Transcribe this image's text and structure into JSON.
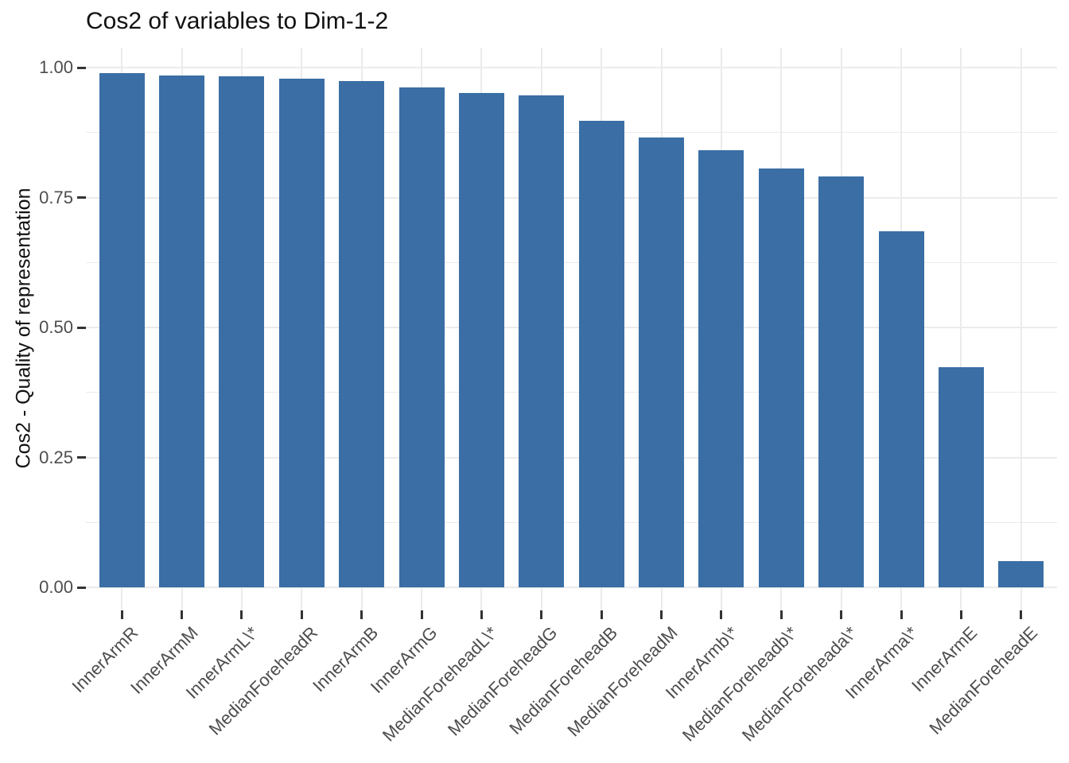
{
  "chart_data": {
    "type": "bar",
    "title": "Cos2 of variables to Dim-1-2",
    "xlabel": "",
    "ylabel": "Cos2 - Quality of representation",
    "categories": [
      "InnerArmR",
      "InnerArmM",
      "InnerArmL\\*",
      "MedianForeheadR",
      "InnerArmB",
      "InnerArmG",
      "MedianForeheadL\\*",
      "MedianForeheadG",
      "MedianForeheadB",
      "MedianForeheadM",
      "InnerArmb\\*",
      "MedianForeheadb\\*",
      "MedianForeheada\\*",
      "InnerArma\\*",
      "InnerArmE",
      "MedianForeheadE"
    ],
    "values": [
      0.99,
      0.985,
      0.983,
      0.978,
      0.974,
      0.962,
      0.951,
      0.947,
      0.897,
      0.866,
      0.841,
      0.806,
      0.79,
      0.685,
      0.423,
      0.05
    ],
    "yticks": [
      0.0,
      0.25,
      0.5,
      0.75,
      1.0
    ],
    "ytick_labels": [
      "0.00",
      "0.25",
      "0.50",
      "0.75",
      "1.00"
    ],
    "yminor_ticks": [
      0.125,
      0.375,
      0.625,
      0.875
    ],
    "ylim": [
      -0.04,
      1.04
    ],
    "grid": true,
    "legend_position": "none",
    "bar_color": "#3A6EA5",
    "grid_color": "#EBEBEB",
    "tick_color": "#333333",
    "axis_text_color": "#4D4D4D",
    "title_color": "#111111",
    "background_color": "#FFFFFF"
  }
}
